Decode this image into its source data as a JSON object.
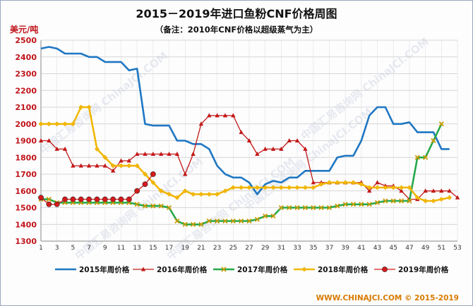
{
  "chart_data": {
    "type": "line",
    "title": "2015－2019年进口鱼粉CNF价格周图",
    "subtitle": "（备注：2010年CNF价格以超级蒸气为主）",
    "ylabel": "美元/吨",
    "xlabel": "",
    "ylim": [
      1300,
      2500
    ],
    "yticks": [
      1300,
      1400,
      1500,
      1600,
      1700,
      1800,
      1900,
      2000,
      2100,
      2200,
      2300,
      2400,
      2500
    ],
    "xlim": [
      1,
      53
    ],
    "xticks": [
      1,
      3,
      5,
      7,
      9,
      11,
      13,
      15,
      17,
      19,
      21,
      23,
      25,
      27,
      29,
      31,
      33,
      35,
      37,
      39,
      41,
      43,
      45,
      47,
      49,
      51,
      53
    ],
    "grid": true,
    "legend_position": "bottom",
    "watermark": "中国汇易咨询网 ChinaJCI.COM",
    "footer": "WWW.CHINAJCI.COM © 2015-2019",
    "series": [
      {
        "name": "2015年周价格",
        "color": "#1f77c3",
        "marker": "none",
        "x": [
          1,
          2,
          3,
          4,
          5,
          6,
          7,
          8,
          9,
          10,
          11,
          12,
          13,
          14,
          15,
          16,
          17,
          18,
          19,
          20,
          21,
          22,
          23,
          24,
          25,
          26,
          27,
          28,
          29,
          30,
          31,
          32,
          33,
          34,
          35,
          36,
          37,
          38,
          39,
          40,
          41,
          42,
          43,
          44,
          45,
          46,
          47,
          48,
          49,
          50,
          51,
          52
        ],
        "values": [
          2450,
          2460,
          2450,
          2420,
          2420,
          2420,
          2400,
          2400,
          2370,
          2370,
          2370,
          2320,
          2330,
          2000,
          1990,
          1990,
          1990,
          1900,
          1900,
          1880,
          1880,
          1850,
          1750,
          1700,
          1680,
          1680,
          1650,
          1580,
          1640,
          1660,
          1650,
          1680,
          1680,
          1720,
          1720,
          1720,
          1720,
          1800,
          1810,
          1810,
          1900,
          2050,
          2100,
          2100,
          2000,
          2000,
          2010,
          1950,
          1950,
          1950,
          1850,
          1850
        ]
      },
      {
        "name": "2016年周价格",
        "color": "#c21818",
        "marker": "triangle",
        "x": [
          1,
          2,
          3,
          4,
          5,
          6,
          7,
          8,
          9,
          10,
          11,
          12,
          13,
          14,
          15,
          16,
          17,
          18,
          19,
          20,
          21,
          22,
          23,
          24,
          25,
          26,
          27,
          28,
          29,
          30,
          31,
          32,
          33,
          34,
          35,
          36,
          37,
          38,
          39,
          40,
          41,
          42,
          43,
          44,
          45,
          46,
          47,
          48,
          49,
          50,
          51,
          52,
          53
        ],
        "values": [
          1900,
          1900,
          1850,
          1850,
          1750,
          1750,
          1750,
          1750,
          1750,
          1720,
          1780,
          1780,
          1820,
          1820,
          1820,
          1820,
          1820,
          1820,
          1700,
          1820,
          2000,
          2050,
          2050,
          2050,
          2050,
          1950,
          1900,
          1820,
          1850,
          1850,
          1850,
          1900,
          1900,
          1850,
          1650,
          1650,
          1650,
          1650,
          1650,
          1650,
          1650,
          1600,
          1650,
          1630,
          1630,
          1600,
          1550,
          1550,
          1600,
          1600,
          1600,
          1600,
          1560
        ]
      },
      {
        "name": "2017年周价格",
        "color": "#27a84a",
        "marker": "x",
        "x": [
          1,
          2,
          3,
          4,
          5,
          6,
          7,
          8,
          9,
          10,
          11,
          12,
          13,
          14,
          15,
          16,
          17,
          18,
          19,
          20,
          21,
          22,
          23,
          24,
          25,
          26,
          27,
          28,
          29,
          30,
          31,
          32,
          33,
          34,
          35,
          36,
          37,
          38,
          39,
          40,
          41,
          42,
          43,
          44,
          45,
          46,
          47,
          48,
          49,
          50,
          51
        ],
        "values": [
          1550,
          1550,
          1530,
          1530,
          1530,
          1530,
          1530,
          1530,
          1530,
          1530,
          1530,
          1530,
          1520,
          1510,
          1510,
          1510,
          1500,
          1420,
          1400,
          1400,
          1400,
          1420,
          1420,
          1420,
          1420,
          1420,
          1420,
          1430,
          1450,
          1450,
          1500,
          1500,
          1500,
          1500,
          1500,
          1500,
          1500,
          1510,
          1520,
          1520,
          1520,
          1520,
          1530,
          1540,
          1540,
          1540,
          1540,
          1800,
          1800,
          1900,
          2000
        ]
      },
      {
        "name": "2018年周价格",
        "color": "#f2b705",
        "marker": "diamond",
        "x": [
          1,
          2,
          3,
          4,
          5,
          6,
          7,
          8,
          9,
          10,
          11,
          12,
          13,
          14,
          15,
          16,
          17,
          18,
          19,
          20,
          21,
          22,
          23,
          24,
          25,
          26,
          27,
          28,
          29,
          30,
          31,
          32,
          33,
          34,
          35,
          36,
          37,
          38,
          39,
          40,
          41,
          42,
          43,
          44,
          45,
          46,
          47,
          48,
          49,
          50,
          51,
          52
        ],
        "values": [
          2000,
          2000,
          2000,
          2000,
          2000,
          2100,
          2100,
          1850,
          1800,
          1750,
          1750,
          1750,
          1750,
          1700,
          1650,
          1600,
          1580,
          1560,
          1600,
          1580,
          1580,
          1580,
          1580,
          1600,
          1620,
          1620,
          1620,
          1620,
          1620,
          1620,
          1620,
          1620,
          1620,
          1620,
          1620,
          1640,
          1650,
          1650,
          1650,
          1650,
          1640,
          1620,
          1620,
          1620,
          1620,
          1620,
          1620,
          1560,
          1540,
          1540,
          1550,
          1560
        ]
      },
      {
        "name": "2019年周价格",
        "color": "#d61a1a",
        "marker": "circle",
        "x": [
          1,
          2,
          3,
          4,
          5,
          6,
          7,
          8,
          9,
          10,
          11,
          12,
          13,
          14,
          15
        ],
        "values": [
          1560,
          1520,
          1520,
          1550,
          1550,
          1550,
          1550,
          1550,
          1550,
          1550,
          1550,
          1550,
          1600,
          1640,
          1700
        ]
      }
    ]
  }
}
